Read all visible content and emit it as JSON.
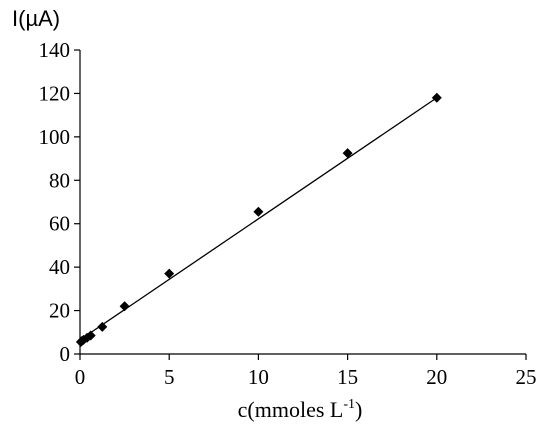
{
  "chart_data": {
    "type": "scatter",
    "title": "",
    "ylabel": "I(µA)",
    "xlabel_base": "c(mmoles L",
    "xlabel_exp": "-1",
    "xlabel_close": ")",
    "xlim": [
      0,
      25
    ],
    "ylim": [
      0,
      140
    ],
    "xticks": [
      "0",
      "5",
      "10",
      "15",
      "20",
      "25"
    ],
    "yticks": [
      "0",
      "20",
      "40",
      "60",
      "80",
      "100",
      "120",
      "140"
    ],
    "grid": false,
    "legend": "none",
    "marker": "diamond",
    "color": "#000000",
    "points": [
      {
        "x": 0.05,
        "y": 5.5
      },
      {
        "x": 0.1,
        "y": 6.0
      },
      {
        "x": 0.2,
        "y": 6.5
      },
      {
        "x": 0.4,
        "y": 7.5
      },
      {
        "x": 0.6,
        "y": 8.5
      },
      {
        "x": 1.25,
        "y": 12.5
      },
      {
        "x": 2.5,
        "y": 22.0
      },
      {
        "x": 5.0,
        "y": 37.0
      },
      {
        "x": 10.0,
        "y": 65.5
      },
      {
        "x": 15.0,
        "y": 92.5
      },
      {
        "x": 20.0,
        "y": 118.0
      }
    ],
    "fit_line": {
      "x": [
        0,
        20
      ],
      "y": [
        6.5,
        118.0
      ]
    }
  }
}
